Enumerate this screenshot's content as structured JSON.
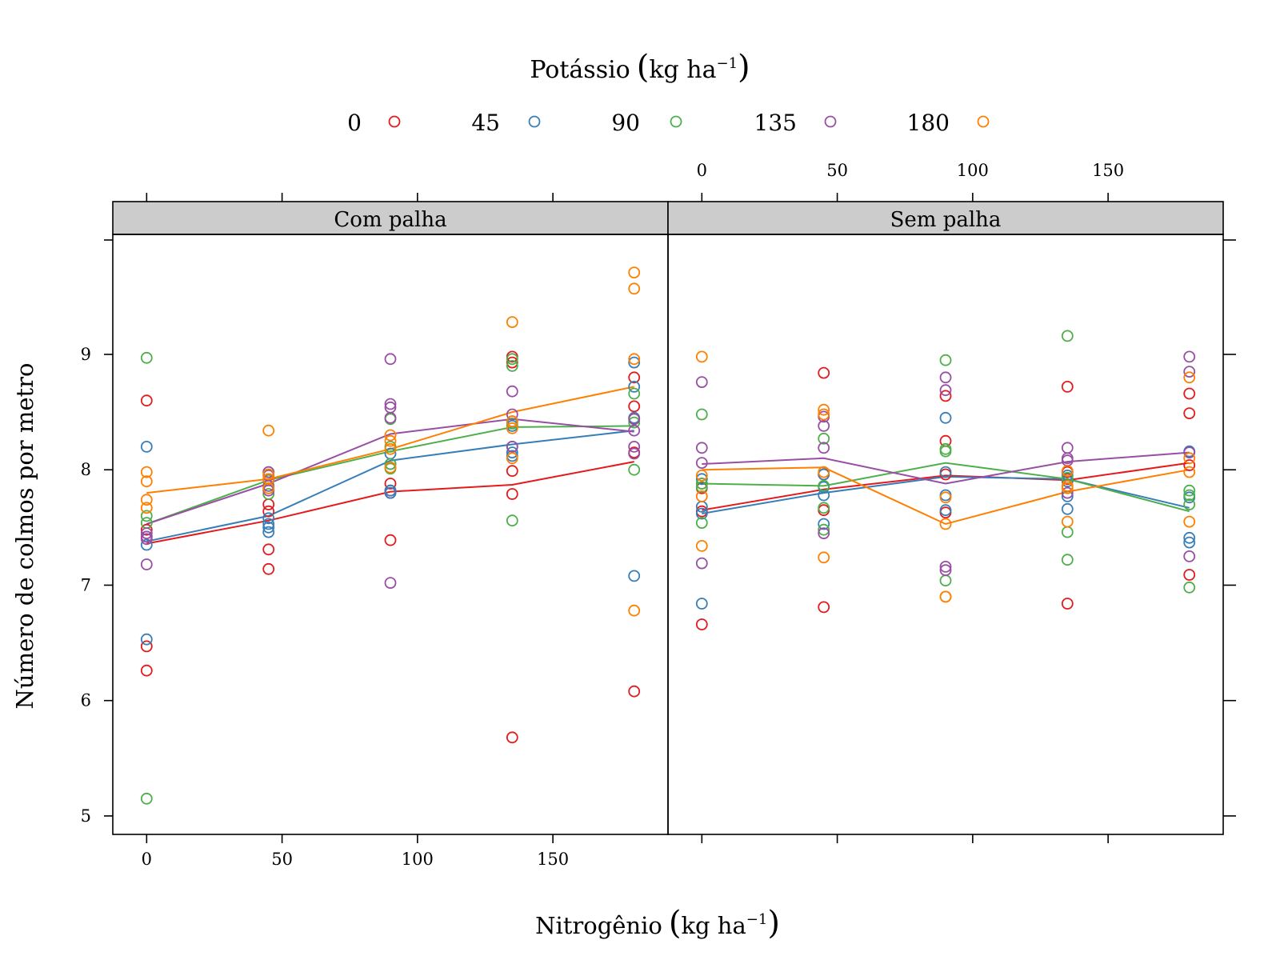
{
  "chart_data": {
    "type": "scatter",
    "title": "",
    "legend": {
      "title": "Potássio",
      "title_unit": "kg ha",
      "title_unit_sup": "−1",
      "placement": "top"
    },
    "xlabel": "Nitrogênio",
    "xlabel_unit": "kg ha",
    "xlabel_unit_sup": "−1",
    "ylabel": "Número de colmos por metro",
    "xlim": [
      -12.5,
      192.5
    ],
    "ylim": [
      4.84,
      10.04
    ],
    "x_ticks": [
      0,
      50,
      100,
      150
    ],
    "y_ticks": [
      5,
      6,
      7,
      8,
      9
    ],
    "grid": false,
    "levels": [
      0,
      45,
      90,
      135,
      180
    ],
    "series": [
      {
        "name": "0",
        "color": "#E41A1C"
      },
      {
        "name": "45",
        "color": "#377EB8"
      },
      {
        "name": "90",
        "color": "#4DAF4A"
      },
      {
        "name": "135",
        "color": "#984EA3"
      },
      {
        "name": "180",
        "color": "#FF7F00"
      }
    ],
    "panels": [
      {
        "strip": "Com palha",
        "lines": [
          [
            7.36,
            7.56,
            7.81,
            7.87,
            8.07
          ],
          [
            7.38,
            7.6,
            8.08,
            8.22,
            8.34
          ],
          [
            7.53,
            7.91,
            8.16,
            8.37,
            8.38
          ],
          [
            7.53,
            7.88,
            8.31,
            8.44,
            8.33
          ],
          [
            7.8,
            7.92,
            8.18,
            8.5,
            8.72
          ]
        ],
        "points": [
          [
            [
              8.6,
              7.48,
              6.47,
              6.26
            ],
            [
              7.7,
              7.64,
              7.31,
              7.14
            ],
            [
              7.88,
              7.82,
              7.39,
              7.8
            ],
            [
              8.98,
              8.93,
              7.99,
              7.79,
              5.68
            ],
            [
              8.8,
              8.55,
              8.15,
              6.08
            ]
          ],
          [
            [
              8.2,
              7.42,
              7.35,
              6.53
            ],
            [
              7.58,
              7.53,
              7.5,
              7.46
            ],
            [
              8.14,
              8.05,
              7.8,
              7.82
            ],
            [
              8.38,
              8.2,
              8.15,
              8.12
            ],
            [
              8.93,
              8.72,
              8.45,
              7.08
            ]
          ],
          [
            [
              8.97,
              7.6,
              7.54,
              5.15
            ],
            [
              7.98,
              7.91,
              7.84,
              7.79
            ],
            [
              8.44,
              8.2,
              8.05,
              8.01
            ],
            [
              8.96,
              8.9,
              8.4,
              7.56
            ],
            [
              8.66,
              8.44,
              8.41,
              8.0
            ]
          ],
          [
            [
              7.45,
              7.42,
              7.4,
              7.18
            ],
            [
              7.98,
              7.95,
              7.86,
              7.82
            ],
            [
              8.96,
              8.57,
              8.54,
              8.45,
              7.02
            ],
            [
              8.68,
              8.48,
              8.42,
              8.2
            ],
            [
              8.44,
              8.34,
              8.2,
              8.14
            ]
          ],
          [
            [
              7.98,
              7.9,
              7.74,
              7.67
            ],
            [
              8.34,
              7.96,
              7.92,
              7.84
            ],
            [
              8.3,
              8.25,
              8.18,
              8.02
            ],
            [
              9.28,
              8.42,
              8.36,
              8.1
            ],
            [
              9.71,
              9.57,
              8.96,
              6.78
            ]
          ]
        ]
      },
      {
        "strip": "Sem palha",
        "lines": [
          [
            7.65,
            7.83,
            7.95,
            7.91,
            8.06
          ],
          [
            7.62,
            7.8,
            7.94,
            7.92,
            7.67
          ],
          [
            7.88,
            7.86,
            8.06,
            7.92,
            7.64
          ],
          [
            8.05,
            8.1,
            7.88,
            8.07,
            8.15
          ],
          [
            8.0,
            8.02,
            7.53,
            7.81,
            8.0
          ]
        ],
        "points": [
          [
            [
              7.88,
              7.84,
              7.64,
              6.66
            ],
            [
              8.84,
              7.96,
              7.65,
              6.81
            ],
            [
              8.64,
              8.25,
              7.96,
              7.63
            ],
            [
              8.72,
              7.98,
              7.92,
              6.84
            ],
            [
              8.66,
              8.49,
              7.09,
              8.04
            ]
          ],
          [
            [
              7.92,
              7.68,
              7.62,
              6.84
            ],
            [
              7.96,
              7.85,
              7.78,
              7.53
            ],
            [
              8.45,
              7.98,
              7.78,
              7.65
            ],
            [
              7.95,
              7.9,
              7.77,
              7.66
            ],
            [
              8.16,
              7.76,
              7.41,
              7.37
            ]
          ],
          [
            [
              8.48,
              7.88,
              7.85,
              7.54
            ],
            [
              8.27,
              7.86,
              7.67,
              7.48
            ],
            [
              8.95,
              8.18,
              8.16,
              7.04
            ],
            [
              9.16,
              7.93,
              7.46,
              7.22
            ],
            [
              7.82,
              7.78,
              7.7,
              6.98
            ]
          ],
          [
            [
              8.76,
              8.19,
              8.06,
              7.19
            ],
            [
              8.46,
              8.38,
              8.19,
              7.45
            ],
            [
              8.8,
              8.69,
              7.16,
              7.13
            ],
            [
              8.19,
              8.1,
              8.08,
              7.8
            ],
            [
              8.98,
              8.85,
              7.25,
              8.15
            ]
          ],
          [
            [
              8.98,
              7.95,
              7.77,
              7.34
            ],
            [
              8.52,
              8.48,
              7.98,
              7.24
            ],
            [
              7.76,
              7.53,
              6.9,
              6.9
            ],
            [
              7.99,
              7.86,
              7.84,
              7.55
            ],
            [
              8.8,
              8.1,
              7.98,
              7.55
            ]
          ]
        ]
      }
    ]
  }
}
